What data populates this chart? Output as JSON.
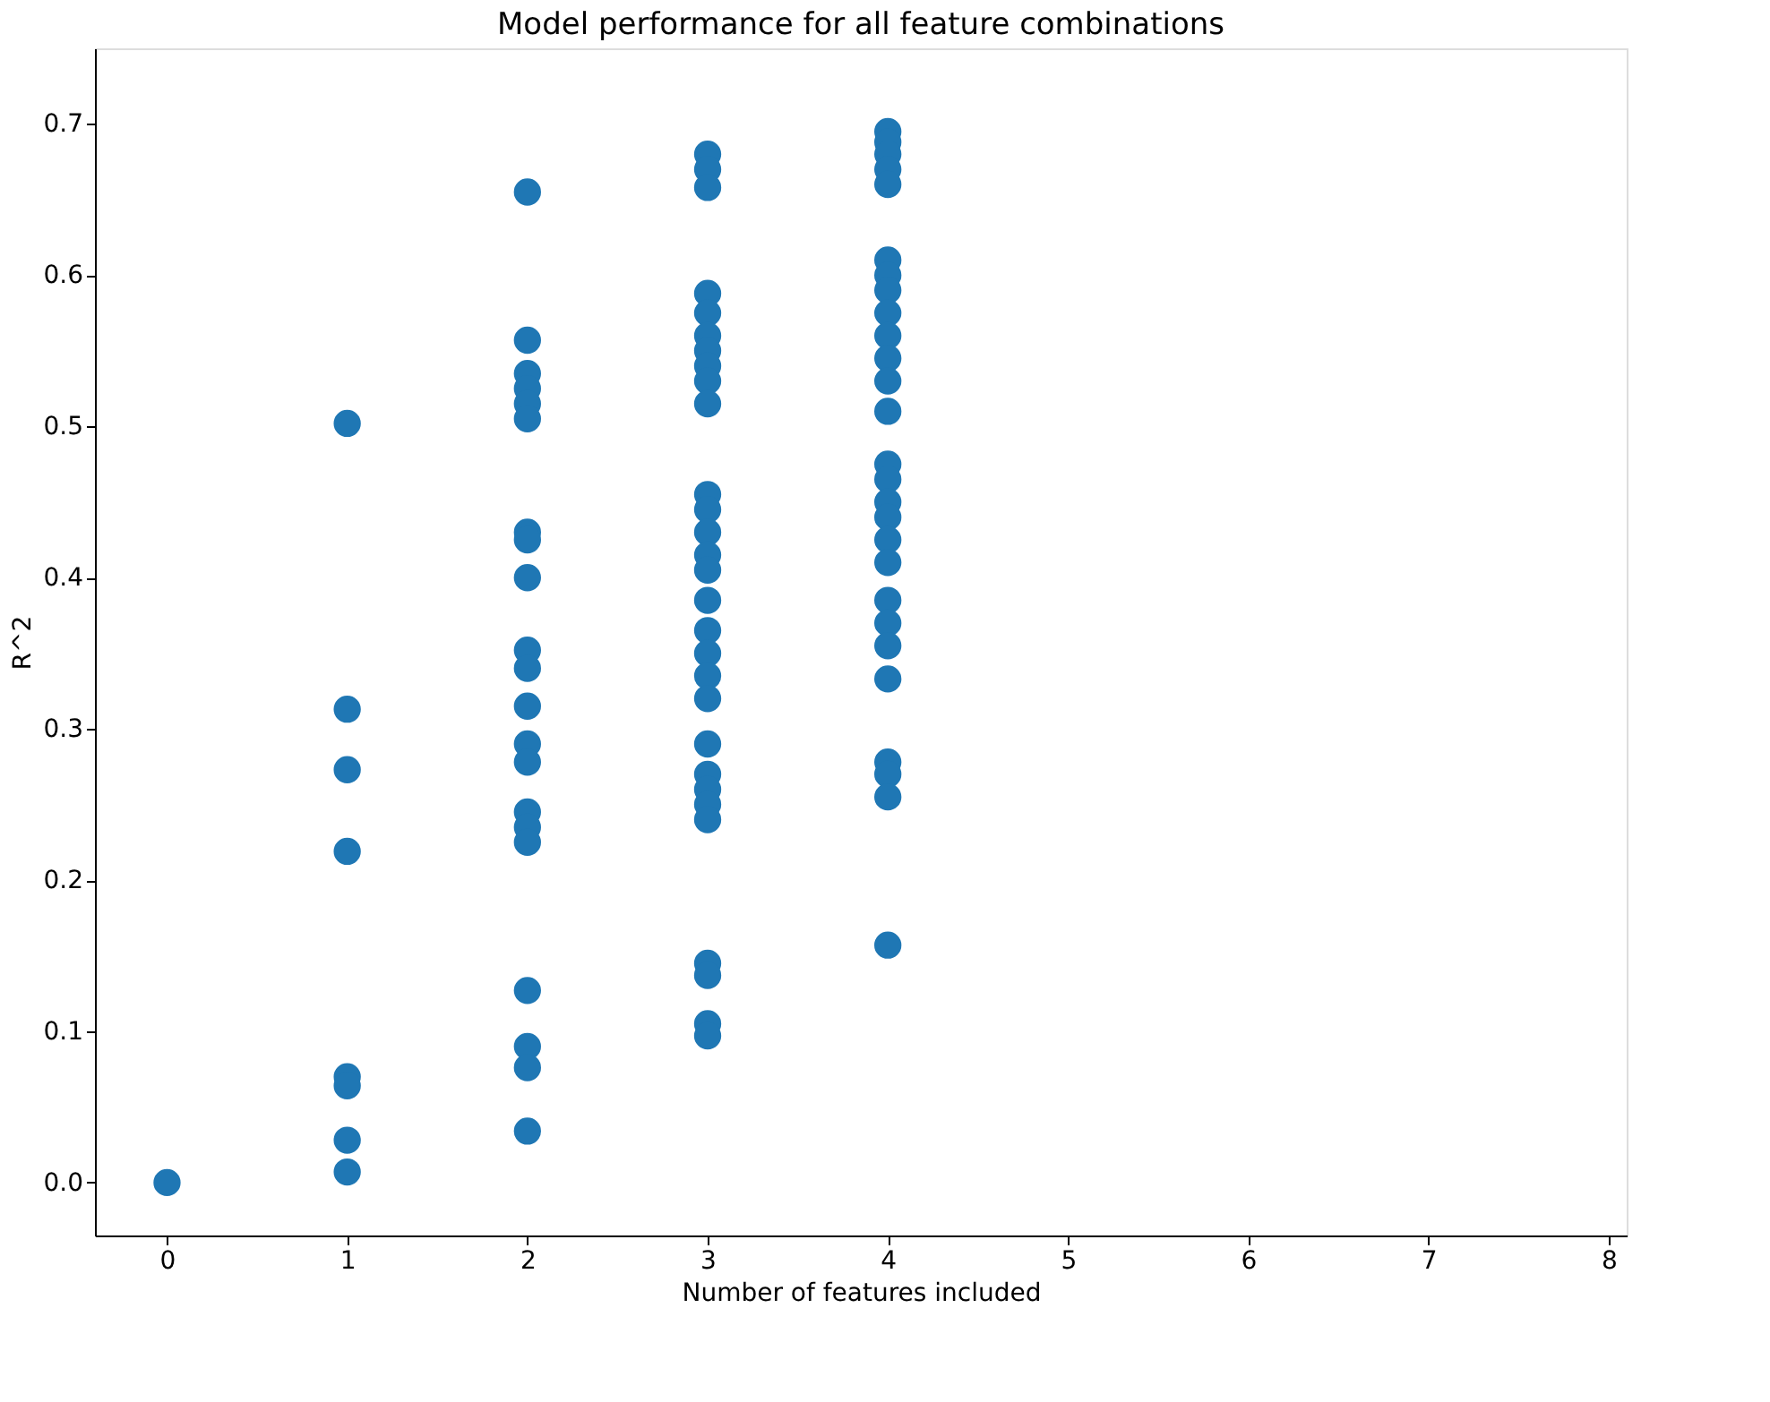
{
  "chart_data": {
    "type": "scatter",
    "title": "Model performance for all feature combinations",
    "xlabel": "Number of features included",
    "ylabel": "R^2",
    "x": [
      0,
      1,
      1,
      1,
      1,
      1,
      1,
      1,
      1,
      2,
      2,
      2,
      2,
      2,
      2,
      2,
      2,
      2,
      2,
      2,
      2,
      2,
      2,
      2,
      2,
      2,
      2,
      2,
      2,
      2,
      3,
      3,
      3,
      3,
      3,
      3,
      3,
      3,
      3,
      3,
      3,
      3,
      3,
      3,
      3,
      3,
      3,
      3,
      3,
      3,
      3,
      3,
      3,
      3,
      3,
      3,
      3,
      3,
      3,
      4,
      4,
      4,
      4,
      4,
      4,
      4,
      4,
      4,
      4,
      4,
      4,
      4,
      4,
      4,
      4,
      4,
      4,
      4,
      4,
      4,
      4,
      4,
      4,
      4,
      4,
      4
    ],
    "values": [
      0.0,
      0.502,
      0.313,
      0.273,
      0.219,
      0.07,
      0.064,
      0.028,
      0.007,
      0.655,
      0.557,
      0.535,
      0.525,
      0.515,
      0.505,
      0.43,
      0.425,
      0.4,
      0.352,
      0.34,
      0.315,
      0.29,
      0.278,
      0.245,
      0.235,
      0.225,
      0.127,
      0.09,
      0.076,
      0.034,
      0.68,
      0.67,
      0.658,
      0.588,
      0.575,
      0.56,
      0.55,
      0.54,
      0.53,
      0.515,
      0.455,
      0.445,
      0.43,
      0.415,
      0.405,
      0.385,
      0.365,
      0.35,
      0.335,
      0.32,
      0.29,
      0.27,
      0.26,
      0.25,
      0.24,
      0.145,
      0.137,
      0.105,
      0.097,
      0.695,
      0.688,
      0.68,
      0.67,
      0.66,
      0.61,
      0.6,
      0.59,
      0.575,
      0.56,
      0.545,
      0.53,
      0.51,
      0.475,
      0.465,
      0.45,
      0.44,
      0.425,
      0.41,
      0.385,
      0.37,
      0.355,
      0.333,
      0.278,
      0.27,
      0.255,
      0.157
    ],
    "color": "#1f77b4",
    "marker": "circle",
    "xlim": [
      -0.4,
      8.1
    ],
    "xticks": [
      0,
      1,
      2,
      3,
      4,
      5,
      6,
      7,
      8
    ],
    "ylim": [
      -0.035,
      0.75
    ],
    "yticks": [
      {
        "value": 0,
        "label": "0.0"
      },
      {
        "value": 0.1,
        "label": "0.1"
      },
      {
        "value": 0.2,
        "label": "0.2"
      },
      {
        "value": 0.3,
        "label": "0.3"
      },
      {
        "value": 0.4,
        "label": "0.4"
      },
      {
        "value": 0.5,
        "label": "0.5"
      },
      {
        "value": 0.6,
        "label": "0.6"
      },
      {
        "value": 0.7,
        "label": "0.7"
      }
    ],
    "grid": false
  }
}
